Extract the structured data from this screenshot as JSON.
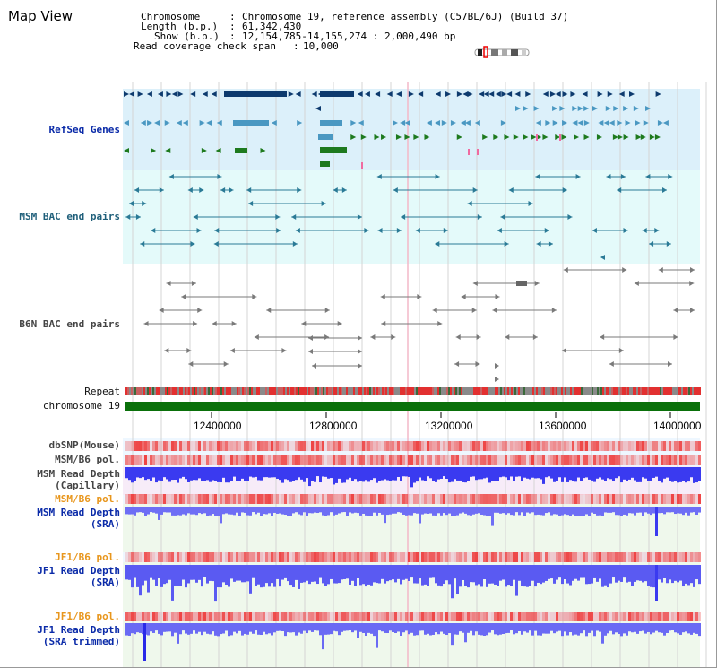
{
  "header": {
    "title": "Map View",
    "chromosome_key": "Chromosome",
    "chromosome_val": "Chromosome 19, reference assembly (C57BL/6J) (Build 37)",
    "length_key": "Length (b.p.)",
    "length_val": "61,342,430",
    "show_key": "Show (b.p.)",
    "show_val": "12,154,785-14,155,274 : 2,000,490 bp",
    "span_key": "Read coverage check span",
    "span_val": "10,000"
  },
  "tracks": {
    "refseq": "RefSeq Genes",
    "msm_bac": "MSM BAC end pairs",
    "b6n_bac": "B6N BAC end pairs",
    "repeat": "Repeat",
    "chromosome": "chromosome 19",
    "dbsnp": "dbSNP(Mouse)",
    "msm_b6_pol_1": "MSM/B6 pol.",
    "msm_depth_cap_1": "MSM Read Depth",
    "msm_depth_cap_2": "(Capillary)",
    "msm_b6_pol_2": "MSM/B6 pol.",
    "msm_depth_sra_1": "MSM Read Depth",
    "msm_depth_sra_2": "(SRA)",
    "jf1_b6_pol_1": "JF1/B6 pol.",
    "jf1_depth_sra_1": "JF1 Read Depth",
    "jf1_depth_sra_2": "(SRA)",
    "jf1_b6_pol_2": "JF1/B6 pol.",
    "jf1_depth_trim_1": "JF1 Read Depth",
    "jf1_depth_trim_2": "(SRA trimmed)"
  },
  "axis": {
    "ticks": [
      "12400000",
      "12800000",
      "13200000",
      "13600000",
      "14000000"
    ]
  },
  "colors": {
    "refseq_bg": "#dcf0fa",
    "bac_bg": "#e4fafa",
    "gene_navy": "#0d3a6e",
    "gene_light": "#4a98c2",
    "gene_green": "#1e7a1e",
    "bac_teal": "#2a7a96",
    "bac_grey": "#7a7a7a",
    "chromosome_bar": "#0a700a",
    "pol_red": "#ee3a3a",
    "depth_blue": "#3a3af0"
  }
}
